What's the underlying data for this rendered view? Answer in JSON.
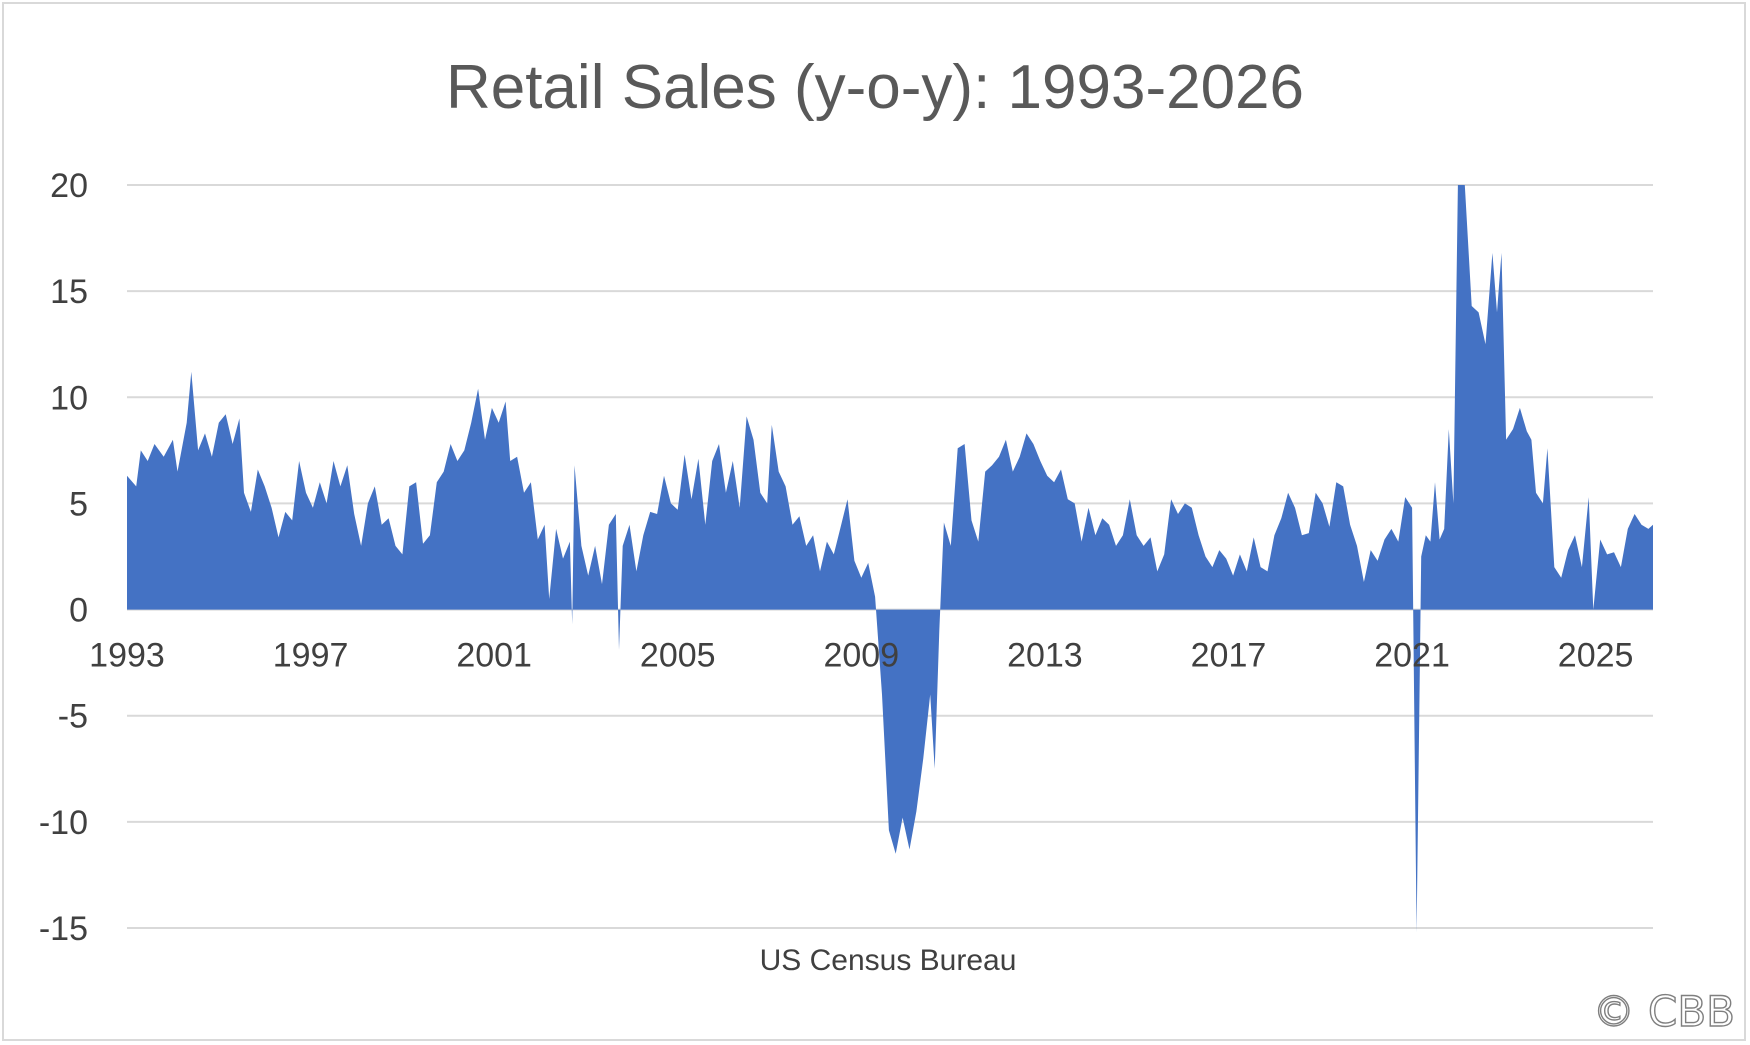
{
  "chart_data": {
    "type": "area",
    "title": "Retail Sales (y-o-y): 1993-2026",
    "source_note": "US Census Bureau",
    "copyright": "© CBB",
    "xlabel": "",
    "ylabel": "",
    "xlim": [
      1993.0,
      2026.25
    ],
    "ylim": [
      -15,
      20
    ],
    "grid": true,
    "legend": "none",
    "fill_color": "#4472C4",
    "grid_color": "#d9d9d9",
    "x_ticks": [
      "1993",
      "1997",
      "2001",
      "2005",
      "2009",
      "2013",
      "2017",
      "2021",
      "2025"
    ],
    "y_ticks": [
      "20",
      "15",
      "10",
      "5",
      "0",
      "-5",
      "-10",
      "-15"
    ],
    "series": [
      {
        "values": [
          [
            1993.0,
            6.3
          ],
          [
            1993.2,
            5.8
          ],
          [
            1993.3,
            7.5
          ],
          [
            1993.45,
            7.0
          ],
          [
            1993.6,
            7.8
          ],
          [
            1993.8,
            7.2
          ],
          [
            1994.0,
            8.0
          ],
          [
            1994.1,
            6.5
          ],
          [
            1994.3,
            8.8
          ],
          [
            1994.4,
            11.2
          ],
          [
            1994.55,
            7.5
          ],
          [
            1994.7,
            8.3
          ],
          [
            1994.85,
            7.2
          ],
          [
            1995.0,
            8.8
          ],
          [
            1995.15,
            9.2
          ],
          [
            1995.3,
            7.8
          ],
          [
            1995.45,
            9.0
          ],
          [
            1995.55,
            5.5
          ],
          [
            1995.7,
            4.6
          ],
          [
            1995.85,
            6.6
          ],
          [
            1996.0,
            5.8
          ],
          [
            1996.15,
            4.8
          ],
          [
            1996.3,
            3.4
          ],
          [
            1996.45,
            4.6
          ],
          [
            1996.6,
            4.2
          ],
          [
            1996.75,
            7.0
          ],
          [
            1996.9,
            5.5
          ],
          [
            1997.05,
            4.8
          ],
          [
            1997.2,
            6.0
          ],
          [
            1997.35,
            5.0
          ],
          [
            1997.5,
            7.0
          ],
          [
            1997.65,
            5.8
          ],
          [
            1997.8,
            6.8
          ],
          [
            1997.95,
            4.5
          ],
          [
            1998.1,
            3.0
          ],
          [
            1998.25,
            5.0
          ],
          [
            1998.4,
            5.8
          ],
          [
            1998.55,
            4.0
          ],
          [
            1998.7,
            4.3
          ],
          [
            1998.85,
            3.0
          ],
          [
            1999.0,
            2.6
          ],
          [
            1999.15,
            5.8
          ],
          [
            1999.3,
            6.0
          ],
          [
            1999.45,
            3.1
          ],
          [
            1999.6,
            3.5
          ],
          [
            1999.75,
            6.0
          ],
          [
            1999.9,
            6.5
          ],
          [
            2000.05,
            7.8
          ],
          [
            2000.2,
            7.0
          ],
          [
            2000.35,
            7.5
          ],
          [
            2000.5,
            8.8
          ],
          [
            2000.65,
            10.4
          ],
          [
            2000.8,
            8.0
          ],
          [
            2000.95,
            9.5
          ],
          [
            2001.1,
            8.8
          ],
          [
            2001.25,
            9.8
          ],
          [
            2001.35,
            7.0
          ],
          [
            2001.5,
            7.2
          ],
          [
            2001.65,
            5.5
          ],
          [
            2001.8,
            6.0
          ],
          [
            2001.95,
            3.3
          ],
          [
            2002.1,
            4.0
          ],
          [
            2002.2,
            0.5
          ],
          [
            2002.35,
            3.8
          ],
          [
            2002.5,
            2.4
          ],
          [
            2002.65,
            3.2
          ],
          [
            2002.7,
            -0.7
          ],
          [
            2002.75,
            6.8
          ],
          [
            2002.9,
            3.0
          ],
          [
            2003.05,
            1.6
          ],
          [
            2003.2,
            3.0
          ],
          [
            2003.35,
            1.2
          ],
          [
            2003.5,
            4.0
          ],
          [
            2003.65,
            4.5
          ],
          [
            2003.72,
            -1.9
          ],
          [
            2003.8,
            3.0
          ],
          [
            2003.95,
            4.0
          ],
          [
            2004.1,
            1.8
          ],
          [
            2004.25,
            3.5
          ],
          [
            2004.4,
            4.6
          ],
          [
            2004.55,
            4.5
          ],
          [
            2004.7,
            6.3
          ],
          [
            2004.85,
            5.0
          ],
          [
            2005.0,
            4.7
          ],
          [
            2005.15,
            7.3
          ],
          [
            2005.3,
            5.2
          ],
          [
            2005.45,
            7.1
          ],
          [
            2005.6,
            4.0
          ],
          [
            2005.75,
            7.0
          ],
          [
            2005.9,
            7.8
          ],
          [
            2006.05,
            5.5
          ],
          [
            2006.2,
            7.0
          ],
          [
            2006.35,
            4.8
          ],
          [
            2006.5,
            9.1
          ],
          [
            2006.65,
            8.0
          ],
          [
            2006.8,
            5.5
          ],
          [
            2006.95,
            5.0
          ],
          [
            2007.05,
            8.7
          ],
          [
            2007.2,
            6.5
          ],
          [
            2007.35,
            5.8
          ],
          [
            2007.5,
            4.0
          ],
          [
            2007.65,
            4.4
          ],
          [
            2007.8,
            3.0
          ],
          [
            2007.95,
            3.5
          ],
          [
            2008.1,
            1.8
          ],
          [
            2008.25,
            3.2
          ],
          [
            2008.4,
            2.6
          ],
          [
            2008.55,
            3.9
          ],
          [
            2008.7,
            5.2
          ],
          [
            2008.85,
            2.3
          ],
          [
            2009.0,
            1.5
          ],
          [
            2009.15,
            2.2
          ],
          [
            2009.3,
            0.6
          ],
          [
            2009.45,
            -4.0
          ],
          [
            2009.6,
            -10.4
          ],
          [
            2009.75,
            -11.5
          ],
          [
            2009.9,
            -9.8
          ],
          [
            2010.05,
            -11.3
          ],
          [
            2010.2,
            -9.5
          ],
          [
            2010.35,
            -7.0
          ],
          [
            2010.5,
            -4.0
          ],
          [
            2010.6,
            -7.5
          ],
          [
            2010.7,
            -1.0
          ],
          [
            2010.8,
            4.1
          ],
          [
            2010.95,
            3.0
          ],
          [
            2011.1,
            7.6
          ],
          [
            2011.25,
            7.8
          ],
          [
            2011.4,
            4.2
          ],
          [
            2011.55,
            3.2
          ],
          [
            2011.7,
            6.5
          ],
          [
            2011.85,
            6.8
          ],
          [
            2012.0,
            7.2
          ],
          [
            2012.15,
            8.0
          ],
          [
            2012.3,
            6.5
          ],
          [
            2012.45,
            7.2
          ],
          [
            2012.6,
            8.3
          ],
          [
            2012.75,
            7.8
          ],
          [
            2012.9,
            7.0
          ],
          [
            2013.05,
            6.3
          ],
          [
            2013.2,
            6.0
          ],
          [
            2013.35,
            6.6
          ],
          [
            2013.5,
            5.2
          ],
          [
            2013.65,
            5.0
          ],
          [
            2013.8,
            3.2
          ],
          [
            2013.95,
            4.8
          ],
          [
            2014.1,
            3.5
          ],
          [
            2014.25,
            4.3
          ],
          [
            2014.4,
            4.0
          ],
          [
            2014.55,
            3.0
          ],
          [
            2014.7,
            3.5
          ],
          [
            2014.85,
            5.2
          ],
          [
            2015.0,
            3.5
          ],
          [
            2015.15,
            3.0
          ],
          [
            2015.3,
            3.4
          ],
          [
            2015.45,
            1.8
          ],
          [
            2015.6,
            2.6
          ],
          [
            2015.75,
            5.2
          ],
          [
            2015.9,
            4.5
          ],
          [
            2016.05,
            5.0
          ],
          [
            2016.2,
            4.8
          ],
          [
            2016.35,
            3.5
          ],
          [
            2016.5,
            2.5
          ],
          [
            2016.65,
            2.0
          ],
          [
            2016.8,
            2.8
          ],
          [
            2016.95,
            2.4
          ],
          [
            2017.1,
            1.6
          ],
          [
            2017.25,
            2.6
          ],
          [
            2017.4,
            1.8
          ],
          [
            2017.55,
            3.4
          ],
          [
            2017.7,
            2.0
          ],
          [
            2017.85,
            1.8
          ],
          [
            2018.0,
            3.5
          ],
          [
            2018.15,
            4.3
          ],
          [
            2018.3,
            5.5
          ],
          [
            2018.45,
            4.8
          ],
          [
            2018.6,
            3.5
          ],
          [
            2018.75,
            3.6
          ],
          [
            2018.9,
            5.5
          ],
          [
            2019.05,
            5.0
          ],
          [
            2019.2,
            3.9
          ],
          [
            2019.35,
            6.0
          ],
          [
            2019.5,
            5.8
          ],
          [
            2019.65,
            4.0
          ],
          [
            2019.8,
            3.0
          ],
          [
            2019.95,
            1.3
          ],
          [
            2020.1,
            2.8
          ],
          [
            2020.25,
            2.3
          ],
          [
            2020.4,
            3.3
          ],
          [
            2020.55,
            3.8
          ],
          [
            2020.7,
            3.2
          ],
          [
            2020.85,
            5.3
          ],
          [
            2021.0,
            4.8
          ],
          [
            2021.1,
            -15.2
          ],
          [
            2021.2,
            2.5
          ],
          [
            2021.3,
            3.5
          ],
          [
            2021.4,
            3.2
          ],
          [
            2021.5,
            6.0
          ],
          [
            2021.6,
            3.3
          ],
          [
            2021.7,
            3.8
          ],
          [
            2021.8,
            8.5
          ],
          [
            2021.9,
            5.0
          ],
          [
            2022.0,
            20.0
          ],
          [
            2022.15,
            20.0
          ],
          [
            2022.3,
            14.3
          ],
          [
            2022.45,
            14.0
          ],
          [
            2022.6,
            12.5
          ],
          [
            2022.75,
            16.8
          ],
          [
            2022.85,
            14.0
          ],
          [
            2022.95,
            16.8
          ],
          [
            2023.05,
            8.0
          ],
          [
            2023.2,
            8.5
          ],
          [
            2023.35,
            9.5
          ],
          [
            2023.5,
            8.4
          ],
          [
            2023.6,
            8.0
          ],
          [
            2023.7,
            5.5
          ],
          [
            2023.85,
            5.0
          ],
          [
            2023.95,
            7.6
          ],
          [
            2024.1,
            2.0
          ],
          [
            2024.25,
            1.5
          ],
          [
            2024.4,
            2.8
          ],
          [
            2024.55,
            3.5
          ],
          [
            2024.7,
            2.0
          ],
          [
            2024.85,
            5.3
          ],
          [
            2024.95,
            0.0
          ],
          [
            2025.1,
            3.3
          ],
          [
            2025.25,
            2.6
          ],
          [
            2025.4,
            2.7
          ],
          [
            2025.55,
            2.0
          ],
          [
            2025.7,
            3.8
          ],
          [
            2025.85,
            4.5
          ],
          [
            2026.0,
            4.0
          ],
          [
            2026.15,
            3.8
          ],
          [
            2026.25,
            4.0
          ]
        ]
      }
    ]
  }
}
